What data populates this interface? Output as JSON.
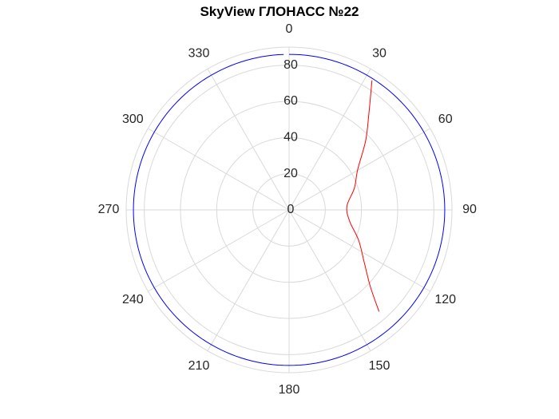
{
  "chart_data": {
    "type": "polar",
    "title": "SkyView ГЛОНАСС №22",
    "theta": {
      "zero_location": "top",
      "direction": "clockwise",
      "ticks": [
        0,
        30,
        60,
        90,
        120,
        150,
        180,
        210,
        240,
        270,
        300,
        330
      ],
      "tick_labels": [
        "0",
        "30",
        "60",
        "90",
        "120",
        "150",
        "180",
        "210",
        "240",
        "270",
        "300",
        "330"
      ]
    },
    "r": {
      "lim": [
        0,
        90
      ],
      "ticks": [
        0,
        20,
        40,
        60,
        80
      ],
      "tick_labels": [
        "0",
        "20",
        "40",
        "60",
        "80"
      ],
      "tick_label_angle_deg": 0
    },
    "grid": true,
    "series": [
      {
        "color": "#0000ff",
        "theta_deg": [
          0,
          15,
          30,
          45,
          60,
          75,
          90,
          105,
          120,
          135,
          150,
          165,
          180,
          195,
          210,
          225,
          240,
          255,
          270,
          285,
          300,
          315,
          330,
          345,
          358
        ],
        "r": [
          86,
          86,
          86,
          86,
          86,
          86,
          86,
          86,
          86,
          86,
          86,
          86,
          86,
          86,
          86,
          86,
          86,
          86,
          86,
          86,
          86,
          86,
          86,
          86,
          86
        ]
      },
      {
        "color": "#ff0000",
        "theta_deg": [
          32.6,
          39.7,
          47.9,
          59.5,
          71.6,
          86.4,
          100.5,
          113.7,
          125.3,
          133.5,
          138.5
        ],
        "r": [
          85,
          69,
          57,
          44,
          38,
          32,
          34,
          42,
          51,
          62,
          75
        ]
      }
    ],
    "colors": {
      "grid": "#d9d9d9",
      "outer_ring": "#d9d9d9",
      "tick_text": "#262626",
      "title_text": "#000000"
    }
  }
}
